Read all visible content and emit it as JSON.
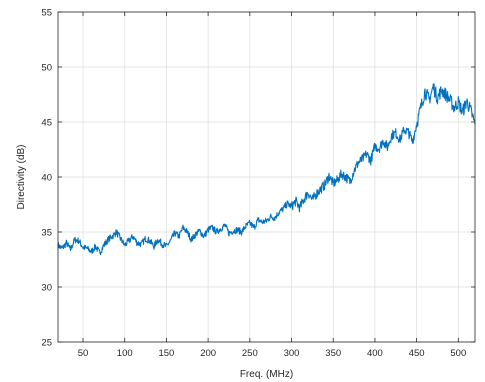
{
  "chart_data": {
    "type": "line",
    "title": "",
    "xlabel": "Freq. (MHz)",
    "ylabel": "Directivity (dB)",
    "xlim": [
      20,
      520
    ],
    "ylim": [
      25,
      55
    ],
    "xticks": [
      50,
      100,
      150,
      200,
      250,
      300,
      350,
      400,
      450,
      500
    ],
    "yticks": [
      25,
      30,
      35,
      40,
      45,
      50,
      55
    ],
    "grid": true,
    "legend": "none",
    "series": [
      {
        "color": "#0072BD",
        "x": [
          20,
          25,
          30,
          35,
          40,
          45,
          50,
          55,
          60,
          65,
          70,
          75,
          80,
          85,
          90,
          95,
          100,
          105,
          110,
          115,
          120,
          125,
          130,
          135,
          140,
          145,
          150,
          155,
          160,
          165,
          170,
          175,
          180,
          185,
          190,
          195,
          200,
          205,
          210,
          215,
          220,
          225,
          230,
          235,
          240,
          245,
          250,
          255,
          260,
          265,
          270,
          275,
          280,
          285,
          290,
          295,
          300,
          305,
          310,
          315,
          320,
          325,
          330,
          335,
          340,
          345,
          350,
          355,
          360,
          365,
          370,
          375,
          380,
          385,
          390,
          395,
          400,
          405,
          410,
          415,
          420,
          425,
          430,
          435,
          440,
          445,
          450,
          455,
          460,
          465,
          470,
          475,
          480,
          485,
          490,
          495,
          500,
          505,
          510,
          515,
          520
        ],
        "y": [
          33.8,
          33.5,
          34.0,
          33.4,
          34.3,
          34.2,
          33.6,
          33.5,
          33.2,
          33.7,
          33.1,
          33.8,
          34.3,
          34.6,
          35.0,
          34.4,
          33.8,
          34.2,
          34.6,
          34.0,
          33.9,
          34.4,
          34.2,
          33.7,
          34.3,
          33.9,
          33.7,
          34.2,
          34.9,
          34.6,
          35.4,
          35.0,
          34.3,
          34.8,
          35.1,
          34.6,
          35.2,
          35.4,
          35.0,
          35.3,
          35.6,
          34.9,
          35.1,
          35.2,
          35.0,
          35.5,
          35.8,
          35.4,
          36.1,
          35.9,
          36.0,
          36.4,
          36.3,
          36.8,
          37.1,
          37.6,
          37.3,
          37.8,
          37.2,
          38.0,
          38.6,
          37.9,
          38.5,
          38.9,
          39.3,
          40.1,
          39.4,
          39.7,
          40.3,
          40.0,
          39.6,
          40.6,
          41.3,
          41.6,
          42.1,
          41.5,
          42.8,
          42.6,
          43.3,
          42.7,
          43.8,
          44.0,
          43.4,
          44.3,
          44.1,
          43.2,
          44.8,
          46.3,
          47.8,
          47.0,
          48.2,
          47.2,
          47.9,
          47.5,
          47.0,
          46.3,
          46.8,
          45.9,
          46.9,
          46.0,
          44.8
        ]
      }
    ]
  }
}
